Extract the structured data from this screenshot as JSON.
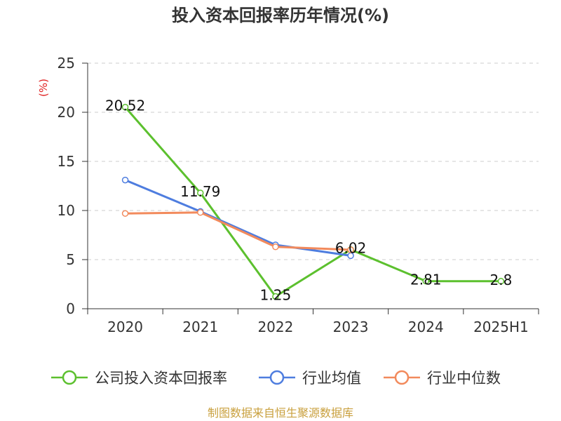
{
  "chart_data": {
    "type": "line",
    "title": "投入资本回报率历年情况(%)",
    "ylabel": "(%)",
    "ylabel_color": "#e02020",
    "ylim": [
      0,
      25
    ],
    "yticks": [
      0,
      5,
      10,
      15,
      20,
      25
    ],
    "categories": [
      "2020",
      "2021",
      "2022",
      "2023",
      "2024",
      "2025H1"
    ],
    "grid": true,
    "legend_position": "bottom",
    "series": [
      {
        "name": "公司投入资本回报率",
        "color": "#5cc02e",
        "values": [
          20.52,
          11.79,
          1.25,
          6.02,
          2.81,
          2.8
        ],
        "data_labels": [
          "20.52",
          "11.79",
          "1.25",
          "6.02",
          "2.81",
          "2.8"
        ]
      },
      {
        "name": "行业均值",
        "color": "#4e7ddf",
        "values": [
          13.1,
          9.9,
          6.5,
          5.4,
          null,
          null
        ]
      },
      {
        "name": "行业中位数",
        "color": "#f28a5c",
        "values": [
          9.7,
          9.8,
          6.3,
          6.0,
          null,
          null
        ]
      }
    ]
  },
  "footer": {
    "source": "制图数据来自恒生聚源数据库",
    "color": "#c9a03e"
  }
}
